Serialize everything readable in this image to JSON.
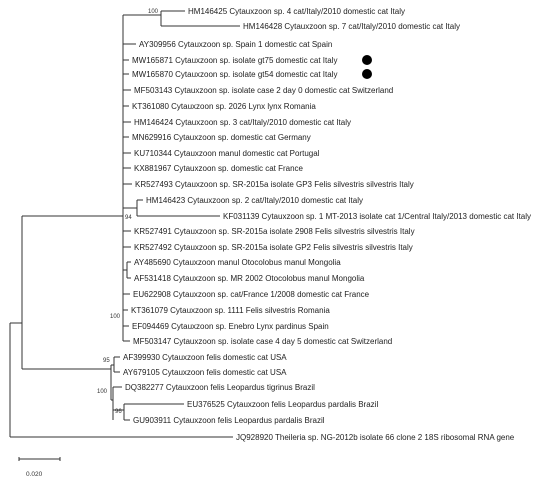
{
  "figure": {
    "leaves": [
      {
        "label": "HM146425 Cytauxzoon sp. 4 cat/Italy/2010 domestic cat Italy"
      },
      {
        "label": "HM146428 Cytauxzoon sp. 7 cat/Italy/2010 domestic cat Italy"
      },
      {
        "label": "AY309956 Cytauxzoon sp. Spain 1 domestic cat Spain"
      },
      {
        "label": "MW165871 Cytauxzoon sp. isolate gt75 domestic cat Italy",
        "marker": "black-dot"
      },
      {
        "label": "MW165870 Cytauxzoon sp. isolate gt54 domestic cat Italy",
        "marker": "black-dot"
      },
      {
        "label": "MF503143 Cytauxzoon sp. isolate case 2 day 0 domestic cat Switzerland"
      },
      {
        "label": "KT361080 Cytauxzoon sp. 2026 Lynx lynx Romania"
      },
      {
        "label": "HM146424 Cytauxzoon sp. 3 cat/Italy/2010 domestic cat Italy"
      },
      {
        "label": "MN629916 Cytauxzoon sp. domestic cat Germany"
      },
      {
        "label": "KU710344 Cytauxzoon manul domestic cat Portugal"
      },
      {
        "label": "KX881967 Cytauxzoon sp. domestic cat France"
      },
      {
        "label": "KR527493 Cytauxzoon sp. SR-2015a isolate GP3 Felis silvestris silvestris Italy"
      },
      {
        "label": "HM146423 Cytauxzoon sp. 2 cat/Italy/2010 domestic cat Italy"
      },
      {
        "label": "KF031139 Cytauxzoon sp. 1 MT-2013 isolate cat 1/Central Italy/2013 domestic cat Italy"
      },
      {
        "label": "KR527491 Cytauxzoon sp. SR-2015a isolate 2908 Felis silvestris silvestris Italy"
      },
      {
        "label": "KR527492 Cytauxzoon sp. SR-2015a isolate GP2 Felis silvestris silvestris Italy"
      },
      {
        "label": "AY485690 Cytauxzoon manul Otocolobus manul Mongolia"
      },
      {
        "label": "AF531418 Cytauxzoon sp. MR 2002 Otocolobus manul Mongolia"
      },
      {
        "label": "EU622908 Cytauxzoon sp. cat/France 1/2008 domestic cat France"
      },
      {
        "label": "KT361079 Cytauxzoon sp. 1111 Felis silvestris Romania"
      },
      {
        "label": "EF094469 Cytauxzoon sp. Enebro Lynx pardinus Spain"
      },
      {
        "label": "MF503147 Cytauxzoon sp. isolate case 4 day 5 domestic cat Switzerland"
      },
      {
        "label": "AF399930 Cytauxzoon felis domestic cat USA"
      },
      {
        "label": "AY679105 Cytauxzoon felis domestic cat USA"
      },
      {
        "label": "DQ382277 Cytauxzoon felis Leopardus tigrinus Brazil"
      },
      {
        "label": "EU376525 Cytauxzoon felis Leopardus pardalis Brazil"
      },
      {
        "label": "GU903911 Cytauxzoon felis Leopardus pardalis Brazil"
      },
      {
        "label": "JQ928920 Theileria sp. NG-2012b isolate 66 clone 2 18S ribosomal RNA gene"
      }
    ],
    "bootstrap": {
      "italy_pair": "100",
      "kf_pair": "94",
      "cytauxzoon_sp_clade": "100",
      "felis_usa_pair": "95",
      "felis_clade": "100",
      "felis_brazil": "96"
    },
    "scale_bar": {
      "label": "0.020",
      "value": 0.02
    },
    "colors": {
      "line": "#333333",
      "text": "#222222",
      "marker": "#000000"
    }
  }
}
